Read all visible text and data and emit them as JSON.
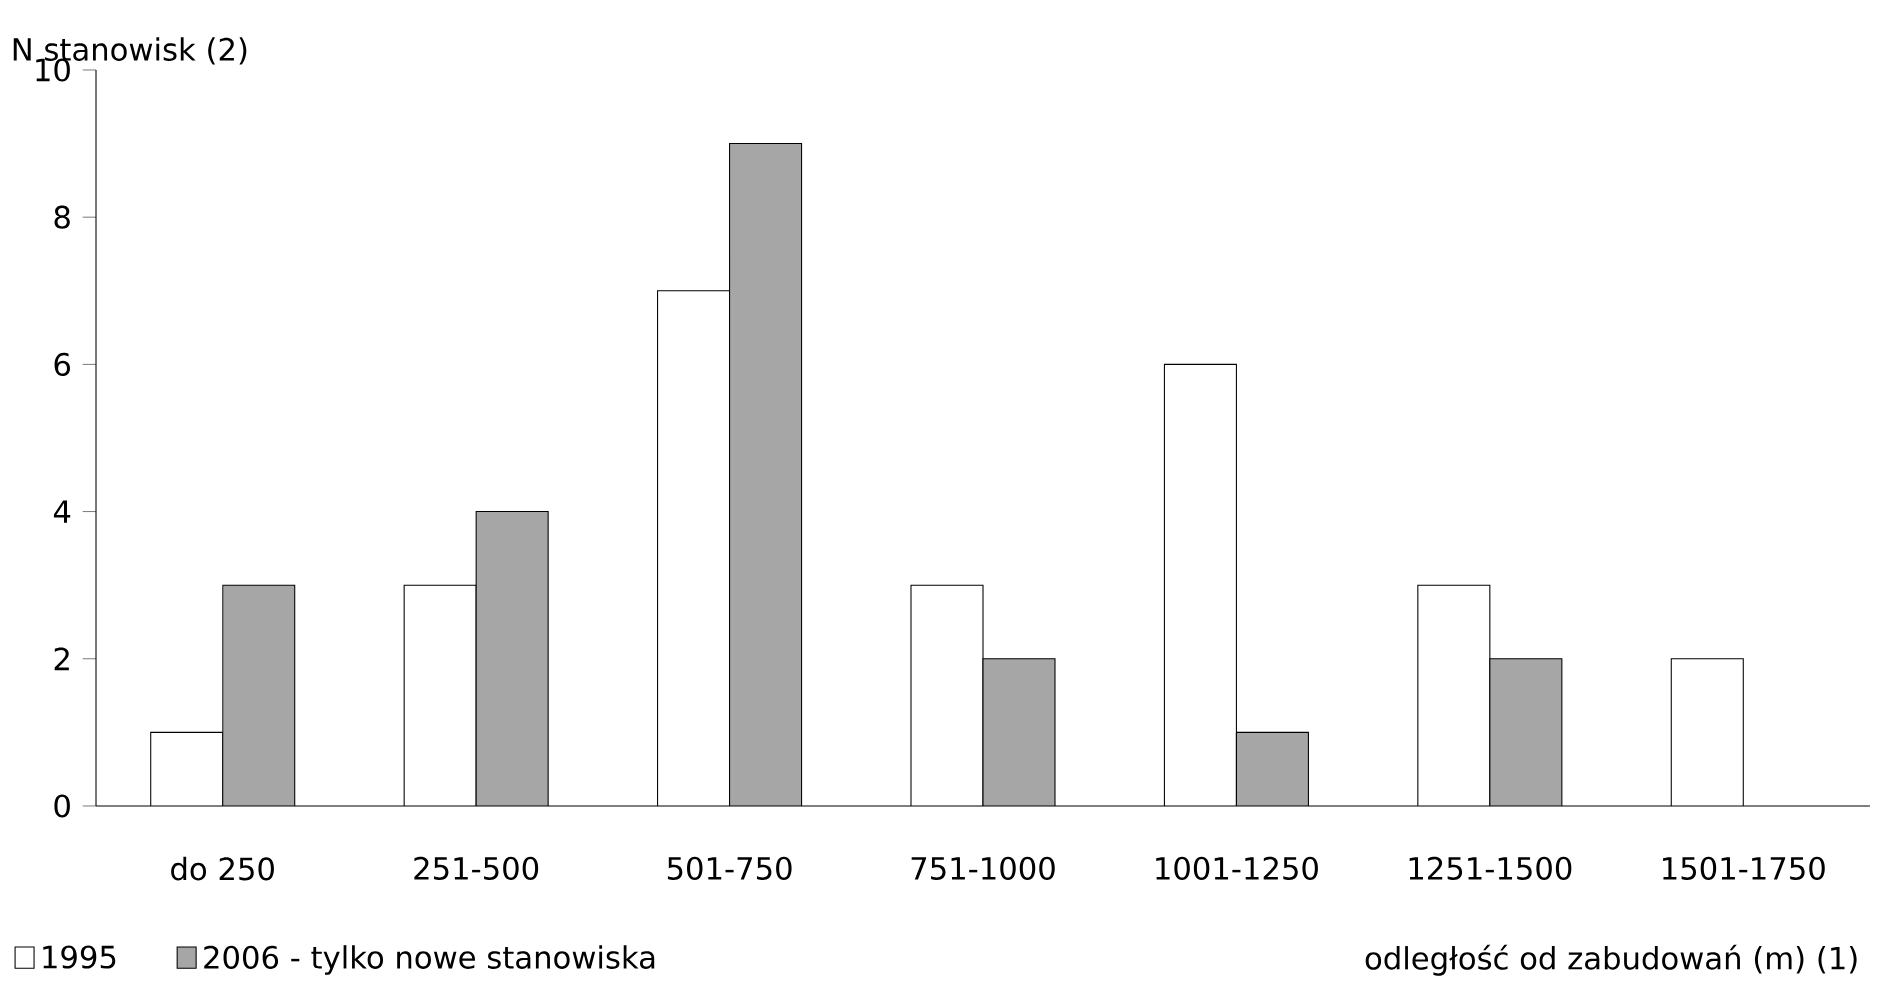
{
  "chart_data": {
    "type": "bar",
    "ylabel": "N stanowisk (2)",
    "xlabel": "odległość od zabudowań (m)  (1)",
    "categories": [
      "do 250",
      "251-500",
      "501-750",
      "751-1000",
      "1001-1250",
      "1251-1500",
      "1501-1750"
    ],
    "series": [
      {
        "name": "1995",
        "color": "#ffffff",
        "values": [
          1,
          3,
          7,
          3,
          6,
          3,
          2
        ]
      },
      {
        "name": "2006 - tylko nowe stanowiska",
        "color": "#a6a6a6",
        "values": [
          3,
          4,
          9,
          2,
          1,
          2,
          null
        ]
      }
    ],
    "ylim": [
      0,
      10
    ],
    "yticks": [
      0,
      2,
      4,
      6,
      8,
      10
    ],
    "grid": false,
    "legend": "bottom left"
  }
}
